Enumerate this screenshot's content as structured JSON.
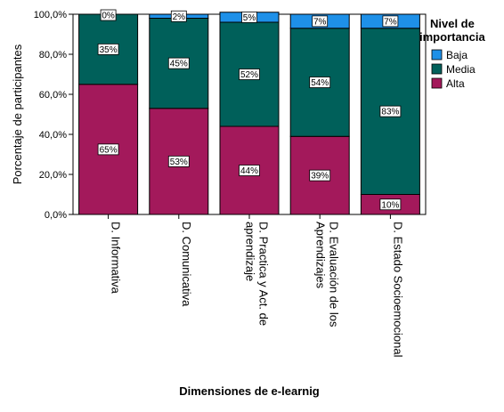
{
  "chart_data": {
    "type": "bar",
    "stacked": true,
    "categories": [
      [
        "D. Informativa"
      ],
      [
        "D. Comunicativa"
      ],
      [
        "D. Practica y Act. de",
        "aprendizaje"
      ],
      [
        "D. Evaluación de los",
        "Aprendizajes"
      ],
      [
        "D. Estado Socioemocional"
      ]
    ],
    "series": [
      {
        "name": "Alta",
        "color": "#A3195B",
        "values": [
          65,
          53,
          44,
          39,
          10
        ],
        "labels": [
          "65%",
          "53%",
          "44%",
          "39%",
          "10%"
        ]
      },
      {
        "name": "Media",
        "color": "#00605A",
        "values": [
          35,
          45,
          52,
          54,
          83
        ],
        "labels": [
          "35%",
          "45%",
          "52%",
          "54%",
          "83%"
        ]
      },
      {
        "name": "Baja",
        "color": "#1E90E8",
        "values": [
          0,
          2,
          5,
          7,
          7
        ],
        "labels": [
          "0%",
          "2%",
          "5%",
          "7%",
          "7%"
        ]
      }
    ],
    "yticks": [
      "0,0%",
      "20,0%",
      "40,0%",
      "60,0%",
      "80,0%",
      "100,0%"
    ],
    "ylim": [
      0,
      100
    ],
    "xlabel": "Dimensiones de e-learnig",
    "ylabel": "Porcentaje de participantes",
    "legend": {
      "title": [
        "Nivel de",
        "importancia"
      ],
      "order": [
        "Baja",
        "Media",
        "Alta"
      ],
      "position": "right"
    },
    "grid": false
  }
}
